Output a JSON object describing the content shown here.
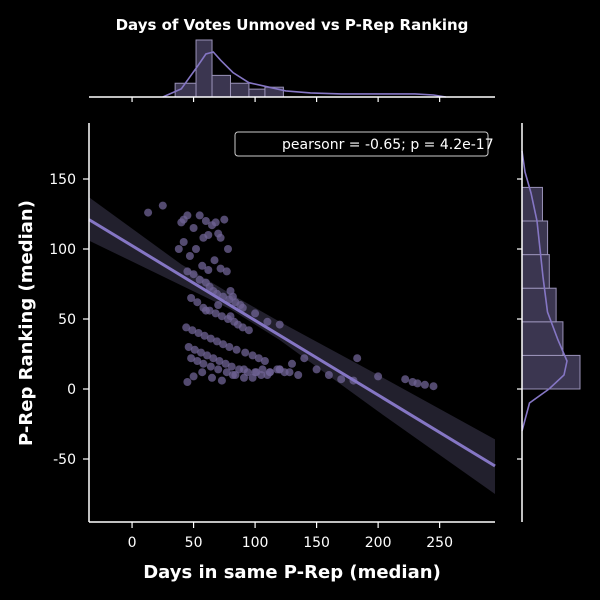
{
  "chart_data": {
    "type": "scatter",
    "title": "Days of Votes Unmoved vs P-Rep Ranking",
    "xlabel": "Days in same P-Rep (median)",
    "ylabel": "P-Rep Ranking (median)",
    "xlim": [
      -35,
      295
    ],
    "ylim": [
      -95,
      190
    ],
    "xticks": [
      0,
      50,
      100,
      150,
      200,
      250
    ],
    "yticks": [
      -50,
      0,
      50,
      100,
      150
    ],
    "annotation": "pearsonr = -0.65; p = 4.2e-17",
    "legend_position": "top-right",
    "colors": {
      "background": "#000000",
      "points": "#6f6394",
      "regression_line": "#8576c4",
      "confidence_band": "#3e3a52",
      "histogram_fill": "#3b3650",
      "histogram_edge": "#9a92b8",
      "axes": "#ffffff"
    },
    "regression": {
      "x": [
        -35,
        295
      ],
      "y": [
        121,
        -55
      ]
    },
    "confidence_band": {
      "x": [
        -35,
        40,
        80,
        120,
        200,
        295
      ],
      "upper": [
        137,
        89,
        68,
        48,
        10,
        -36
      ],
      "lower": [
        106,
        74,
        57,
        35,
        -16,
        -75
      ]
    },
    "points": {
      "x": [
        13,
        25,
        40,
        42,
        45,
        50,
        55,
        58,
        60,
        62,
        65,
        68,
        70,
        72,
        75,
        78,
        80,
        38,
        42,
        47,
        52,
        57,
        62,
        67,
        72,
        77,
        82,
        45,
        50,
        55,
        60,
        63,
        66,
        69,
        74,
        79,
        84,
        88,
        48,
        53,
        58,
        63,
        68,
        73,
        78,
        83,
        86,
        90,
        95,
        44,
        49,
        54,
        59,
        64,
        69,
        74,
        79,
        85,
        92,
        98,
        103,
        108,
        46,
        51,
        56,
        61,
        66,
        71,
        76,
        81,
        87,
        94,
        100,
        106,
        112,
        118,
        124,
        48,
        53,
        58,
        64,
        70,
        77,
        84,
        91,
        98,
        105,
        112,
        120,
        128,
        135,
        45,
        50,
        57,
        65,
        73,
        82,
        91,
        101,
        110,
        120,
        130,
        60,
        70,
        80,
        90,
        100,
        110,
        120,
        140,
        150,
        160,
        170,
        180,
        183,
        200,
        222,
        228,
        232,
        238,
        245
      ],
      "y": [
        126,
        131,
        119,
        121,
        124,
        115,
        124,
        108,
        120,
        110,
        117,
        119,
        111,
        108,
        121,
        100,
        70,
        100,
        105,
        95,
        100,
        88,
        85,
        92,
        86,
        84,
        66,
        84,
        82,
        78,
        76,
        73,
        70,
        68,
        66,
        64,
        62,
        60,
        65,
        62,
        58,
        56,
        54,
        52,
        50,
        48,
        46,
        44,
        42,
        44,
        42,
        40,
        38,
        36,
        34,
        32,
        30,
        28,
        26,
        24,
        22,
        20,
        30,
        28,
        26,
        24,
        22,
        20,
        18,
        16,
        14,
        12,
        12,
        14,
        12,
        14,
        12,
        22,
        20,
        18,
        16,
        14,
        12,
        10,
        8,
        8,
        10,
        12,
        14,
        12,
        10,
        5,
        9,
        12,
        8,
        6,
        10,
        14,
        12,
        10,
        14,
        18,
        56,
        60,
        52,
        58,
        54,
        48,
        46,
        22,
        14,
        10,
        7,
        6,
        22,
        9,
        7,
        5,
        4,
        3,
        2
      ]
    },
    "top_histogram": {
      "bin_edges": [
        35,
        52,
        65,
        80,
        95,
        108,
        123
      ],
      "counts": [
        7,
        29,
        11,
        7,
        4,
        5
      ],
      "kde_x": [
        25,
        40,
        52,
        60,
        66,
        72,
        82,
        95,
        110,
        125,
        145,
        170,
        200,
        230,
        245,
        255
      ],
      "kde_y": [
        0,
        4,
        14,
        21,
        22,
        18,
        12,
        7,
        5,
        3,
        2,
        1.5,
        1.5,
        1.5,
        1,
        0
      ]
    },
    "right_histogram": {
      "bin_edges": [
        0,
        24,
        48,
        72,
        96,
        120,
        144
      ],
      "counts": [
        34,
        24,
        20,
        16,
        15,
        12
      ],
      "kde_y": [
        -30,
        -10,
        0,
        10,
        20,
        35,
        55,
        80,
        100,
        120,
        140,
        155,
        170
      ],
      "kde_x": [
        0,
        5,
        18,
        28,
        30,
        24,
        17,
        14,
        12,
        10,
        6,
        2,
        0
      ]
    }
  }
}
